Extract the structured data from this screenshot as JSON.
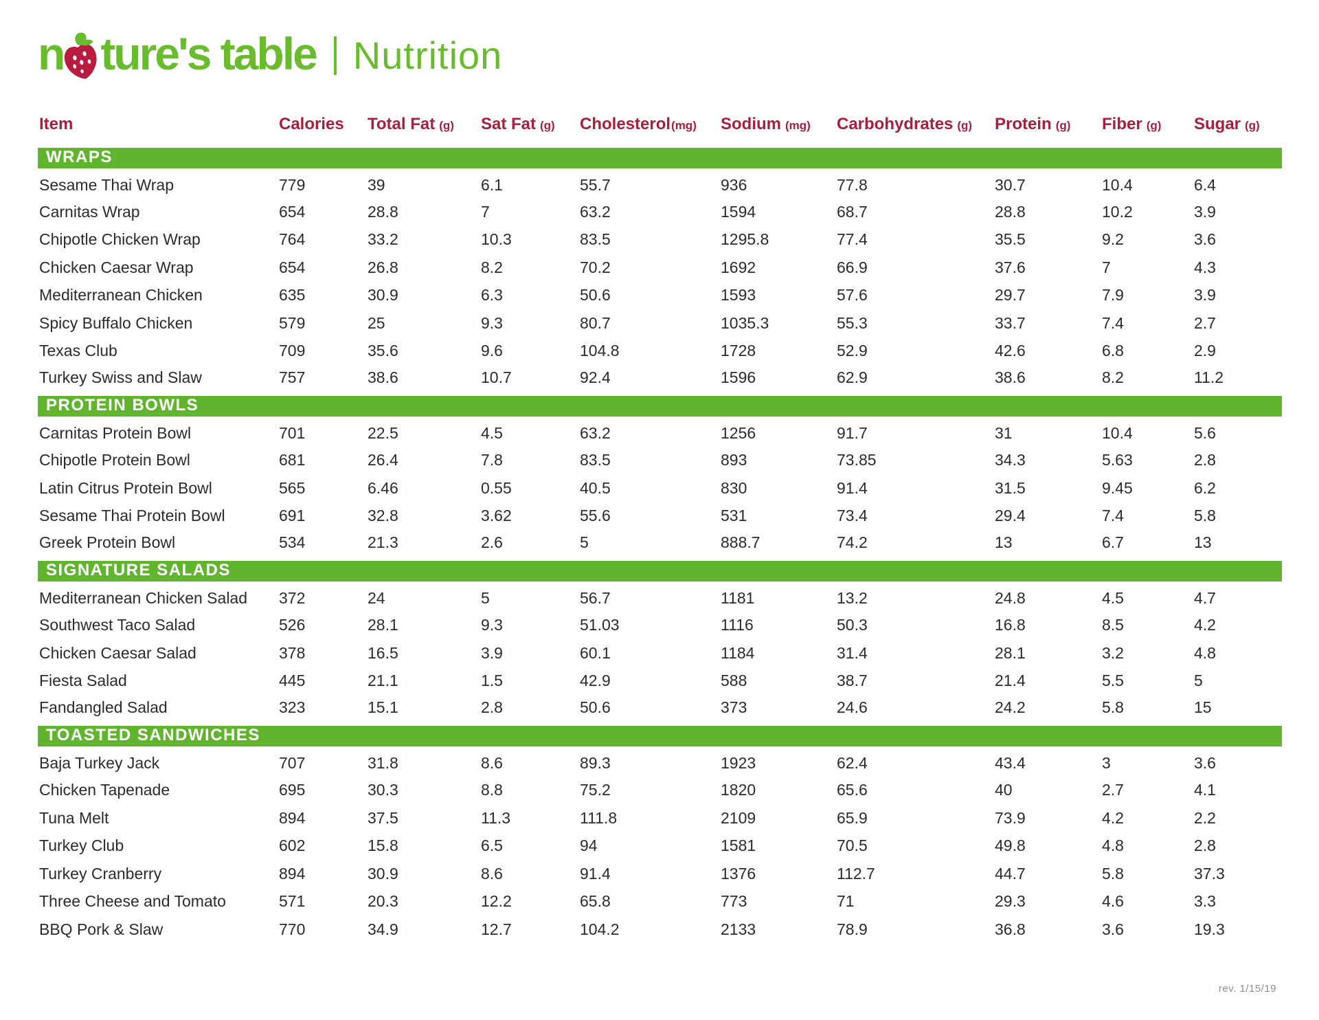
{
  "logo": {
    "brand_prefix": "n",
    "brand_suffix": "ture's table",
    "title": "Nutrition"
  },
  "colors": {
    "brand_green": "#6abc2f",
    "band_green": "#61b52e",
    "header_crimson": "#a81e3d",
    "berry_red": "#b91c3e"
  },
  "columns": [
    {
      "label": "Item",
      "unit": ""
    },
    {
      "label": "Calories",
      "unit": ""
    },
    {
      "label": "Total Fat",
      "unit": "(g)"
    },
    {
      "label": "Sat Fat",
      "unit": "(g)"
    },
    {
      "label": "Cholesterol",
      "unit": "(mg)"
    },
    {
      "label": "Sodium",
      "unit": "(mg)"
    },
    {
      "label": "Carbohydrates",
      "unit": "(g)"
    },
    {
      "label": "Protein",
      "unit": "(g)"
    },
    {
      "label": "Fiber",
      "unit": "(g)"
    },
    {
      "label": "Sugar",
      "unit": "(g)"
    }
  ],
  "sections": [
    {
      "name": "WRAPS",
      "rows": [
        {
          "item": "Sesame Thai Wrap",
          "values": [
            "779",
            "39",
            "6.1",
            "55.7",
            "936",
            "77.8",
            "30.7",
            "10.4",
            "6.4"
          ]
        },
        {
          "item": "Carnitas Wrap",
          "values": [
            "654",
            "28.8",
            "7",
            "63.2",
            "1594",
            "68.7",
            "28.8",
            "10.2",
            "3.9"
          ]
        },
        {
          "item": "Chipotle Chicken Wrap",
          "values": [
            "764",
            "33.2",
            "10.3",
            "83.5",
            "1295.8",
            "77.4",
            "35.5",
            "9.2",
            "3.6"
          ]
        },
        {
          "item": "Chicken Caesar Wrap",
          "values": [
            "654",
            "26.8",
            "8.2",
            "70.2",
            "1692",
            "66.9",
            "37.6",
            "7",
            "4.3"
          ]
        },
        {
          "item": "Mediterranean Chicken",
          "values": [
            "635",
            "30.9",
            "6.3",
            "50.6",
            "1593",
            "57.6",
            "29.7",
            "7.9",
            "3.9"
          ]
        },
        {
          "item": "Spicy Buffalo Chicken",
          "values": [
            "579",
            "25",
            "9.3",
            "80.7",
            "1035.3",
            "55.3",
            "33.7",
            "7.4",
            "2.7"
          ]
        },
        {
          "item": "Texas Club",
          "values": [
            "709",
            "35.6",
            "9.6",
            "104.8",
            "1728",
            "52.9",
            "42.6",
            "6.8",
            "2.9"
          ]
        },
        {
          "item": "Turkey Swiss and Slaw",
          "values": [
            "757",
            "38.6",
            "10.7",
            "92.4",
            "1596",
            "62.9",
            "38.6",
            "8.2",
            "11.2"
          ]
        }
      ]
    },
    {
      "name": "PROTEIN BOWLS",
      "rows": [
        {
          "item": "Carnitas Protein Bowl",
          "values": [
            "701",
            "22.5",
            "4.5",
            "63.2",
            "1256",
            "91.7",
            "31",
            "10.4",
            "5.6"
          ]
        },
        {
          "item": "Chipotle Protein Bowl",
          "values": [
            "681",
            "26.4",
            "7.8",
            "83.5",
            "893",
            "73.85",
            "34.3",
            "5.63",
            "2.8"
          ]
        },
        {
          "item": "Latin Citrus Protein Bowl",
          "values": [
            "565",
            "6.46",
            "0.55",
            "40.5",
            "830",
            "91.4",
            "31.5",
            "9.45",
            "6.2"
          ]
        },
        {
          "item": "Sesame Thai Protein Bowl",
          "values": [
            "691",
            "32.8",
            "3.62",
            "55.6",
            "531",
            "73.4",
            "29.4",
            "7.4",
            "5.8"
          ]
        },
        {
          "item": "Greek Protein Bowl",
          "values": [
            "534",
            "21.3",
            "2.6",
            "5",
            "888.7",
            "74.2",
            "13",
            "6.7",
            "13"
          ]
        }
      ]
    },
    {
      "name": "SIGNATURE SALADS",
      "rows": [
        {
          "item": "Mediterranean Chicken Salad",
          "values": [
            "372",
            "24",
            "5",
            "56.7",
            "1181",
            "13.2",
            "24.8",
            "4.5",
            "4.7"
          ]
        },
        {
          "item": "Southwest Taco Salad",
          "values": [
            "526",
            "28.1",
            "9.3",
            "51.03",
            "1116",
            "50.3",
            "16.8",
            "8.5",
            "4.2"
          ]
        },
        {
          "item": "Chicken Caesar Salad",
          "values": [
            "378",
            "16.5",
            "3.9",
            "60.1",
            "1184",
            "31.4",
            "28.1",
            "3.2",
            "4.8"
          ]
        },
        {
          "item": "Fiesta Salad",
          "values": [
            "445",
            "21.1",
            "1.5",
            "42.9",
            "588",
            "38.7",
            "21.4",
            "5.5",
            "5"
          ]
        },
        {
          "item": "Fandangled Salad",
          "values": [
            "323",
            "15.1",
            "2.8",
            "50.6",
            "373",
            "24.6",
            "24.2",
            "5.8",
            "15"
          ]
        }
      ]
    },
    {
      "name": "TOASTED SANDWICHES",
      "rows": [
        {
          "item": "Baja Turkey Jack",
          "values": [
            "707",
            "31.8",
            "8.6",
            "89.3",
            "1923",
            "62.4",
            "43.4",
            "3",
            "3.6"
          ]
        },
        {
          "item": "Chicken Tapenade",
          "values": [
            "695",
            "30.3",
            "8.8",
            "75.2",
            "1820",
            "65.6",
            "40",
            "2.7",
            "4.1"
          ]
        },
        {
          "item": "Tuna Melt",
          "values": [
            "894",
            "37.5",
            "11.3",
            "111.8",
            "2109",
            "65.9",
            "73.9",
            "4.2",
            "2.2"
          ]
        },
        {
          "item": "Turkey Club",
          "values": [
            "602",
            "15.8",
            "6.5",
            "94",
            "1581",
            "70.5",
            "49.8",
            "4.8",
            "2.8"
          ]
        },
        {
          "item": "Turkey Cranberry",
          "values": [
            "894",
            "30.9",
            "8.6",
            "91.4",
            "1376",
            "112.7",
            "44.7",
            "5.8",
            "37.3"
          ]
        },
        {
          "item": "Three Cheese and Tomato",
          "values": [
            "571",
            "20.3",
            "12.2",
            "65.8",
            "773",
            "71",
            "29.3",
            "4.6",
            "3.3"
          ]
        },
        {
          "item": "BBQ Pork & Slaw",
          "values": [
            "770",
            "34.9",
            "12.7",
            "104.2",
            "2133",
            "78.9",
            "36.8",
            "3.6",
            "19.3"
          ]
        }
      ]
    }
  ],
  "footer": {
    "revision": "rev. 1/15/19"
  }
}
